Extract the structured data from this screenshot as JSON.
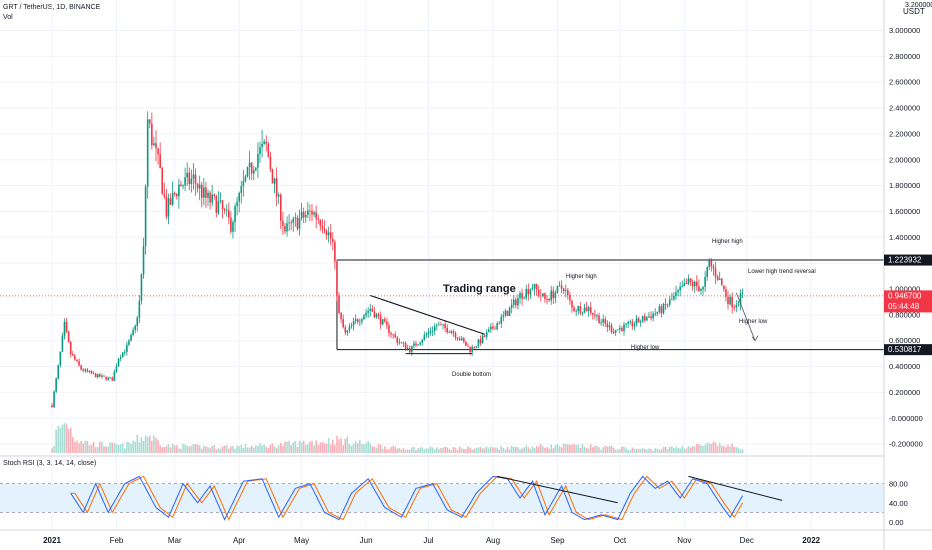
{
  "header": {
    "symbol_line": "GRT / TetherUS, 1D, BINANCE",
    "volume_label": "Vol"
  },
  "chart_data": {
    "type": "candlestick",
    "price_axis": {
      "unit_label": "USDT",
      "ticks": [
        3.0,
        2.8,
        2.6,
        2.4,
        2.2,
        2.0,
        1.8,
        1.6,
        1.4,
        1.2,
        1.0,
        0.8,
        0.6,
        0.4,
        0.2,
        0.0,
        -0.2
      ],
      "tick_labels": [
        "3.000000",
        "2.800000",
        "2.600000",
        "2.400000",
        "2.200000",
        "2.000000",
        "1.800000",
        "1.600000",
        "1.400000",
        "1.200000",
        "1.000000",
        "0.800000",
        "0.600000",
        "0.400000",
        "0.200000",
        "-0.000000",
        "-0.200000"
      ],
      "top_partial_label": "3.200000"
    },
    "time_axis": {
      "labels": [
        "2021",
        "Feb",
        "Mar",
        "Apr",
        "May",
        "Jun",
        "Jul",
        "Aug",
        "Sep",
        "Oct",
        "Nov",
        "Dec",
        "2022"
      ]
    },
    "price_markers": [
      {
        "value": 1.223932,
        "label": "1.223932",
        "style": "level"
      },
      {
        "value": 0.9467,
        "label": "0.946700",
        "sublabel": "05:44:48",
        "style": "last",
        "color": "#f23645"
      },
      {
        "value": 0.530817,
        "label": "0.530817",
        "style": "level"
      }
    ],
    "levels": [
      {
        "name": "range-top",
        "value": 1.223932,
        "from": "May",
        "to": "Dec"
      },
      {
        "name": "range-bottom",
        "value": 0.530817,
        "from": "May",
        "to": "Dec"
      }
    ],
    "annotations": [
      "Trading range",
      "Double bottom",
      "Higher high",
      "Higher low",
      "Higher high",
      "Lower high trend reversal",
      "Higher low"
    ],
    "price_path": [
      [
        "2021-01-01",
        0.1
      ],
      [
        "2021-01-04",
        0.4
      ],
      [
        "2021-01-07",
        0.72
      ],
      [
        "2021-01-10",
        0.5
      ],
      [
        "2021-01-15",
        0.38
      ],
      [
        "2021-01-22",
        0.33
      ],
      [
        "2021-01-30",
        0.3
      ],
      [
        "2021-02-02",
        0.47
      ],
      [
        "2021-02-06",
        0.55
      ],
      [
        "2021-02-10",
        0.7
      ],
      [
        "2021-02-12",
        0.9
      ],
      [
        "2021-02-14",
        1.3
      ],
      [
        "2021-02-16",
        2.3
      ],
      [
        "2021-02-19",
        2.1
      ],
      [
        "2021-02-22",
        1.9
      ],
      [
        "2021-02-25",
        1.6
      ],
      [
        "2021-03-03",
        1.8
      ],
      [
        "2021-03-10",
        1.85
      ],
      [
        "2021-03-16",
        1.7
      ],
      [
        "2021-03-22",
        1.65
      ],
      [
        "2021-03-28",
        1.5
      ],
      [
        "2021-04-03",
        1.8
      ],
      [
        "2021-04-10",
        2.05
      ],
      [
        "2021-04-14",
        2.1
      ],
      [
        "2021-04-18",
        1.8
      ],
      [
        "2021-04-23",
        1.45
      ],
      [
        "2021-05-01",
        1.55
      ],
      [
        "2021-05-06",
        1.6
      ],
      [
        "2021-05-12",
        1.5
      ],
      [
        "2021-05-16",
        1.35
      ],
      [
        "2021-05-19",
        0.8
      ],
      [
        "2021-05-22",
        0.65
      ],
      [
        "2021-05-27",
        0.75
      ],
      [
        "2021-06-03",
        0.85
      ],
      [
        "2021-06-10",
        0.72
      ],
      [
        "2021-06-16",
        0.6
      ],
      [
        "2021-06-22",
        0.53
      ],
      [
        "2021-06-28",
        0.62
      ],
      [
        "2021-07-05",
        0.72
      ],
      [
        "2021-07-12",
        0.68
      ],
      [
        "2021-07-17",
        0.6
      ],
      [
        "2021-07-21",
        0.53
      ],
      [
        "2021-07-26",
        0.6
      ],
      [
        "2021-08-01",
        0.7
      ],
      [
        "2021-08-08",
        0.82
      ],
      [
        "2021-08-14",
        0.95
      ],
      [
        "2021-08-20",
        1.02
      ],
      [
        "2021-08-26",
        0.92
      ],
      [
        "2021-09-04",
        1.02
      ],
      [
        "2021-09-08",
        0.85
      ],
      [
        "2021-09-16",
        0.85
      ],
      [
        "2021-09-22",
        0.75
      ],
      [
        "2021-09-28",
        0.68
      ],
      [
        "2021-10-06",
        0.72
      ],
      [
        "2021-10-14",
        0.78
      ],
      [
        "2021-10-22",
        0.85
      ],
      [
        "2021-10-28",
        0.95
      ],
      [
        "2021-11-03",
        1.05
      ],
      [
        "2021-11-10",
        1.0
      ],
      [
        "2021-11-13",
        1.2
      ],
      [
        "2021-11-17",
        1.1
      ],
      [
        "2021-11-22",
        0.92
      ],
      [
        "2021-11-25",
        0.88
      ],
      [
        "2021-11-29",
        0.95
      ]
    ],
    "volume_path": [
      [
        "2021-01-03",
        0.35
      ],
      [
        "2021-01-08",
        0.55
      ],
      [
        "2021-01-12",
        0.25
      ],
      [
        "2021-01-20",
        0.15
      ],
      [
        "2021-02-05",
        0.12
      ],
      [
        "2021-02-16",
        0.3
      ],
      [
        "2021-02-25",
        0.12
      ],
      [
        "2021-03-20",
        0.1
      ],
      [
        "2021-04-15",
        0.12
      ],
      [
        "2021-05-19",
        0.22
      ],
      [
        "2021-06-15",
        0.08
      ],
      [
        "2021-07-20",
        0.08
      ],
      [
        "2021-08-15",
        0.1
      ],
      [
        "2021-09-07",
        0.12
      ],
      [
        "2021-10-15",
        0.06
      ],
      [
        "2021-11-15",
        0.14
      ],
      [
        "2021-11-29",
        0.1
      ]
    ],
    "stoch_rsi": {
      "label": "Stoch RSI (3, 3, 14, 14, close)",
      "axis_labels": [
        "80.00",
        "40.00",
        "0.00"
      ],
      "upper_band": 80,
      "lower_band": 20,
      "k": [
        [
          "2021-01-10",
          60
        ],
        [
          "2021-01-16",
          20
        ],
        [
          "2021-01-22",
          80
        ],
        [
          "2021-01-28",
          20
        ],
        [
          "2021-02-05",
          80
        ],
        [
          "2021-02-12",
          95
        ],
        [
          "2021-02-20",
          30
        ],
        [
          "2021-02-26",
          10
        ],
        [
          "2021-03-05",
          80
        ],
        [
          "2021-03-12",
          40
        ],
        [
          "2021-03-18",
          75
        ],
        [
          "2021-03-25",
          5
        ],
        [
          "2021-04-03",
          85
        ],
        [
          "2021-04-12",
          90
        ],
        [
          "2021-04-20",
          10
        ],
        [
          "2021-04-28",
          70
        ],
        [
          "2021-05-05",
          80
        ],
        [
          "2021-05-12",
          20
        ],
        [
          "2021-05-19",
          5
        ],
        [
          "2021-05-25",
          60
        ],
        [
          "2021-06-02",
          90
        ],
        [
          "2021-06-10",
          30
        ],
        [
          "2021-06-18",
          10
        ],
        [
          "2021-06-25",
          70
        ],
        [
          "2021-07-03",
          80
        ],
        [
          "2021-07-10",
          25
        ],
        [
          "2021-07-17",
          10
        ],
        [
          "2021-07-24",
          60
        ],
        [
          "2021-08-01",
          95
        ],
        [
          "2021-08-08",
          90
        ],
        [
          "2021-08-14",
          50
        ],
        [
          "2021-08-20",
          85
        ],
        [
          "2021-08-26",
          15
        ],
        [
          "2021-09-03",
          75
        ],
        [
          "2021-09-08",
          20
        ],
        [
          "2021-09-14",
          5
        ],
        [
          "2021-09-22",
          15
        ],
        [
          "2021-09-30",
          5
        ],
        [
          "2021-10-06",
          60
        ],
        [
          "2021-10-12",
          95
        ],
        [
          "2021-10-18",
          70
        ],
        [
          "2021-10-24",
          85
        ],
        [
          "2021-10-30",
          50
        ],
        [
          "2021-11-05",
          90
        ],
        [
          "2021-11-12",
          80
        ],
        [
          "2021-11-18",
          40
        ],
        [
          "2021-11-23",
          10
        ],
        [
          "2021-11-29",
          55
        ]
      ]
    },
    "trend_lines": [
      {
        "name": "stoch-downtrend-1",
        "from": [
          "2021-08-03",
          95
        ],
        "to": [
          "2021-09-30",
          40
        ]
      },
      {
        "name": "stoch-downtrend-2",
        "from": [
          "2021-11-03",
          95
        ],
        "to": [
          "2021-12-18",
          45
        ]
      }
    ]
  },
  "colors": {
    "up": "#089981",
    "down": "#f23645",
    "line": "#131722",
    "stoch_k": "#2962ff",
    "stoch_d": "#ff6d00",
    "stoch_band": "#e3f2fd",
    "grid": "#f0f3fa"
  }
}
